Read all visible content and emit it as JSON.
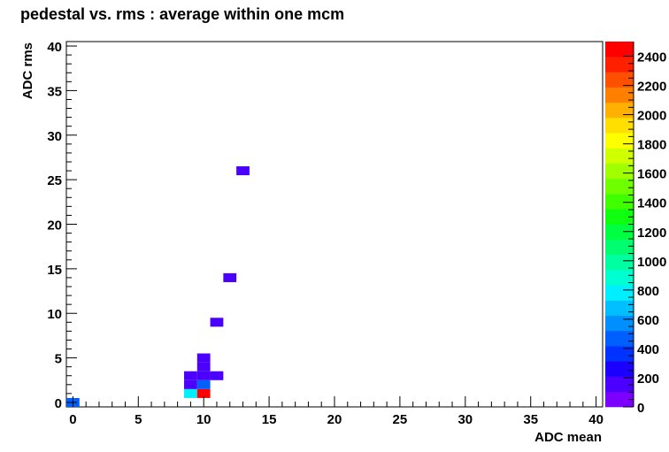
{
  "chart_data": {
    "type": "heatmap",
    "title": "pedestal vs. rms : average within one mcm",
    "xlabel": "ADC mean",
    "ylabel": "ADC rms",
    "xlim": [
      -0.5,
      40.5
    ],
    "ylim": [
      -0.5,
      40.5
    ],
    "x_ticks": [
      "0",
      "5",
      "10",
      "15",
      "20",
      "25",
      "30",
      "35",
      "40"
    ],
    "y_ticks": [
      "0",
      "5",
      "10",
      "15",
      "20",
      "25",
      "30",
      "35",
      "40"
    ],
    "grid": false,
    "cells": [
      {
        "x": 0,
        "y": 0,
        "value": 450
      },
      {
        "x": 9,
        "y": 1,
        "value": 800
      },
      {
        "x": 10,
        "y": 1,
        "value": 2400
      },
      {
        "x": 9,
        "y": 2,
        "value": 150
      },
      {
        "x": 10,
        "y": 2,
        "value": 450
      },
      {
        "x": 9,
        "y": 3,
        "value": 150
      },
      {
        "x": 10,
        "y": 3,
        "value": 150
      },
      {
        "x": 11,
        "y": 3,
        "value": 150
      },
      {
        "x": 10,
        "y": 4,
        "value": 150
      },
      {
        "x": 10,
        "y": 5,
        "value": 150
      },
      {
        "x": 11,
        "y": 9,
        "value": 150
      },
      {
        "x": 12,
        "y": 14,
        "value": 150
      },
      {
        "x": 13,
        "y": 26,
        "value": 150
      }
    ],
    "colorbar": {
      "range": [
        0,
        2500
      ],
      "tick_labels": [
        "0",
        "200",
        "400",
        "600",
        "800",
        "1000",
        "1200",
        "1400",
        "1600",
        "1800",
        "2000",
        "2200",
        "2400"
      ],
      "colors": [
        "#7b00ff",
        "#4b00ff",
        "#1c00ff",
        "#0033ff",
        "#0060ff",
        "#008fff",
        "#00bfff",
        "#00efff",
        "#00ffd0",
        "#00ffa0",
        "#00ff70",
        "#00ff40",
        "#10ff10",
        "#3fff00",
        "#70ff00",
        "#a0ff00",
        "#d0ff00",
        "#ffff00",
        "#ffdf00",
        "#ffb000",
        "#ff8000",
        "#ff5000",
        "#ff2000",
        "#ff0000"
      ]
    }
  }
}
